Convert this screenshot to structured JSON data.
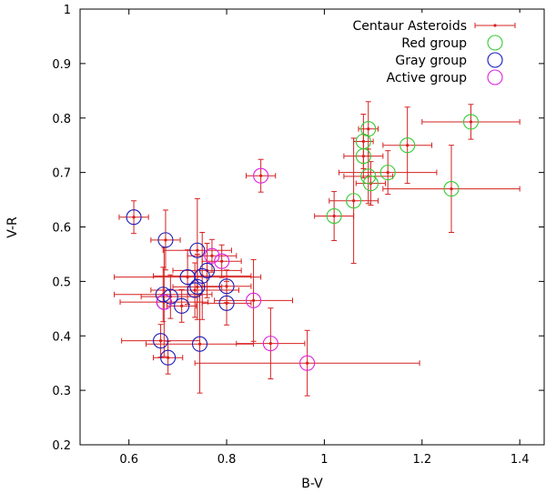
{
  "chart_data": {
    "type": "scatter",
    "xlabel": "B-V",
    "ylabel": "V-R",
    "xlim": [
      0.5,
      1.45
    ],
    "ylim": [
      0.2,
      1.0
    ],
    "xticks": [
      0.6,
      0.8,
      1,
      1.2,
      1.4
    ],
    "xtick_labels": [
      "0.6",
      "0.8",
      "1",
      "1.2",
      "1.4"
    ],
    "yticks": [
      0.2,
      0.3,
      0.4,
      0.5,
      0.6,
      0.7,
      0.8,
      0.9,
      1.0
    ],
    "ytick_labels": [
      "0.2",
      "0.3",
      "0.4",
      "0.5",
      "0.6",
      "0.7",
      "0.8",
      "0.9",
      "1"
    ],
    "legend_position": "top-right",
    "colors": {
      "centaur": "#d62020",
      "red_group": "#33cc33",
      "gray_group": "#1a1ab8",
      "active_group": "#e020e0"
    },
    "series": [
      {
        "name": "Centaur Asteroids",
        "marker": "errorbar",
        "points": [
          {
            "x": 1.3,
            "y": 0.793,
            "xerr": 0.1,
            "yerr": 0.032
          },
          {
            "x": 1.17,
            "y": 0.75,
            "xerr": 0.05,
            "yerr": 0.07
          },
          {
            "x": 1.26,
            "y": 0.67,
            "xerr": 0.14,
            "yerr": 0.08
          },
          {
            "x": 1.13,
            "y": 0.7,
            "xerr": 0.1,
            "yerr": 0.04
          },
          {
            "x": 1.09,
            "y": 0.78,
            "xerr": 0.02,
            "yerr": 0.05
          },
          {
            "x": 1.08,
            "y": 0.757,
            "xerr": 0.02,
            "yerr": 0.05
          },
          {
            "x": 1.09,
            "y": 0.693,
            "xerr": 0.05,
            "yerr": 0.05
          },
          {
            "x": 1.095,
            "y": 0.68,
            "xerr": 0.03,
            "yerr": 0.04
          },
          {
            "x": 1.08,
            "y": 0.73,
            "xerr": 0.04,
            "yerr": 0.04
          },
          {
            "x": 1.06,
            "y": 0.648,
            "xerr": 0.05,
            "yerr": 0.115
          },
          {
            "x": 1.02,
            "y": 0.62,
            "xerr": 0.04,
            "yerr": 0.045
          },
          {
            "x": 0.87,
            "y": 0.694,
            "xerr": 0.03,
            "yerr": 0.03
          },
          {
            "x": 0.61,
            "y": 0.618,
            "xerr": 0.03,
            "yerr": 0.03
          },
          {
            "x": 0.675,
            "y": 0.576,
            "xerr": 0.03,
            "yerr": 0.055
          },
          {
            "x": 0.74,
            "y": 0.557,
            "xerr": 0.07,
            "yerr": 0.095
          },
          {
            "x": 0.77,
            "y": 0.547,
            "xerr": 0.05,
            "yerr": 0.03
          },
          {
            "x": 0.79,
            "y": 0.537,
            "xerr": 0.04,
            "yerr": 0.03
          },
          {
            "x": 0.76,
            "y": 0.52,
            "xerr": 0.07,
            "yerr": 0.05
          },
          {
            "x": 0.72,
            "y": 0.508,
            "xerr": 0.15,
            "yerr": 0.05
          },
          {
            "x": 0.75,
            "y": 0.51,
            "xerr": 0.1,
            "yerr": 0.08
          },
          {
            "x": 0.74,
            "y": 0.49,
            "xerr": 0.05,
            "yerr": 0.06
          },
          {
            "x": 0.735,
            "y": 0.484,
            "xerr": 0.09,
            "yerr": 0.05
          },
          {
            "x": 0.8,
            "y": 0.491,
            "xerr": 0.05,
            "yerr": 0.03
          },
          {
            "x": 0.67,
            "y": 0.476,
            "xerr": 0.1,
            "yerr": 0.05
          },
          {
            "x": 0.685,
            "y": 0.472,
            "xerr": 0.06,
            "yerr": 0.04
          },
          {
            "x": 0.672,
            "y": 0.462,
            "xerr": 0.09,
            "yerr": 0.1
          },
          {
            "x": 0.708,
            "y": 0.455,
            "xerr": 0.03,
            "yerr": 0.03
          },
          {
            "x": 0.8,
            "y": 0.46,
            "xerr": 0.05,
            "yerr": 0.04
          },
          {
            "x": 0.855,
            "y": 0.465,
            "xerr": 0.08,
            "yerr": 0.075
          },
          {
            "x": 0.665,
            "y": 0.391,
            "xerr": 0.08,
            "yerr": 0.03
          },
          {
            "x": 0.745,
            "y": 0.385,
            "xerr": 0.11,
            "yerr": 0.09
          },
          {
            "x": 0.89,
            "y": 0.386,
            "xerr": 0.07,
            "yerr": 0.065
          },
          {
            "x": 0.68,
            "y": 0.36,
            "xerr": 0.03,
            "yerr": 0.03
          },
          {
            "x": 0.965,
            "y": 0.35,
            "xerr": 0.23,
            "yerr": 0.06
          }
        ]
      },
      {
        "name": "Red group",
        "marker": "circle",
        "points": [
          {
            "x": 1.3,
            "y": 0.793
          },
          {
            "x": 1.17,
            "y": 0.75
          },
          {
            "x": 1.26,
            "y": 0.67
          },
          {
            "x": 1.13,
            "y": 0.7
          },
          {
            "x": 1.09,
            "y": 0.78
          },
          {
            "x": 1.08,
            "y": 0.757
          },
          {
            "x": 1.09,
            "y": 0.693
          },
          {
            "x": 1.095,
            "y": 0.68
          },
          {
            "x": 1.08,
            "y": 0.73
          },
          {
            "x": 1.06,
            "y": 0.648
          },
          {
            "x": 1.02,
            "y": 0.62
          }
        ]
      },
      {
        "name": "Gray group",
        "marker": "circle",
        "points": [
          {
            "x": 0.61,
            "y": 0.618
          },
          {
            "x": 0.675,
            "y": 0.576
          },
          {
            "x": 0.74,
            "y": 0.557
          },
          {
            "x": 0.76,
            "y": 0.52
          },
          {
            "x": 0.72,
            "y": 0.508
          },
          {
            "x": 0.75,
            "y": 0.51
          },
          {
            "x": 0.74,
            "y": 0.49
          },
          {
            "x": 0.735,
            "y": 0.484
          },
          {
            "x": 0.8,
            "y": 0.491
          },
          {
            "x": 0.67,
            "y": 0.476
          },
          {
            "x": 0.685,
            "y": 0.472
          },
          {
            "x": 0.672,
            "y": 0.462
          },
          {
            "x": 0.708,
            "y": 0.455
          },
          {
            "x": 0.8,
            "y": 0.46
          },
          {
            "x": 0.665,
            "y": 0.391
          },
          {
            "x": 0.745,
            "y": 0.385
          },
          {
            "x": 0.68,
            "y": 0.36
          }
        ]
      },
      {
        "name": "Active group",
        "marker": "circle",
        "points": [
          {
            "x": 0.87,
            "y": 0.694
          },
          {
            "x": 0.77,
            "y": 0.547
          },
          {
            "x": 0.79,
            "y": 0.537
          },
          {
            "x": 0.855,
            "y": 0.465
          },
          {
            "x": 0.89,
            "y": 0.386
          },
          {
            "x": 0.965,
            "y": 0.35
          },
          {
            "x": 0.672,
            "y": 0.462
          }
        ]
      }
    ]
  }
}
